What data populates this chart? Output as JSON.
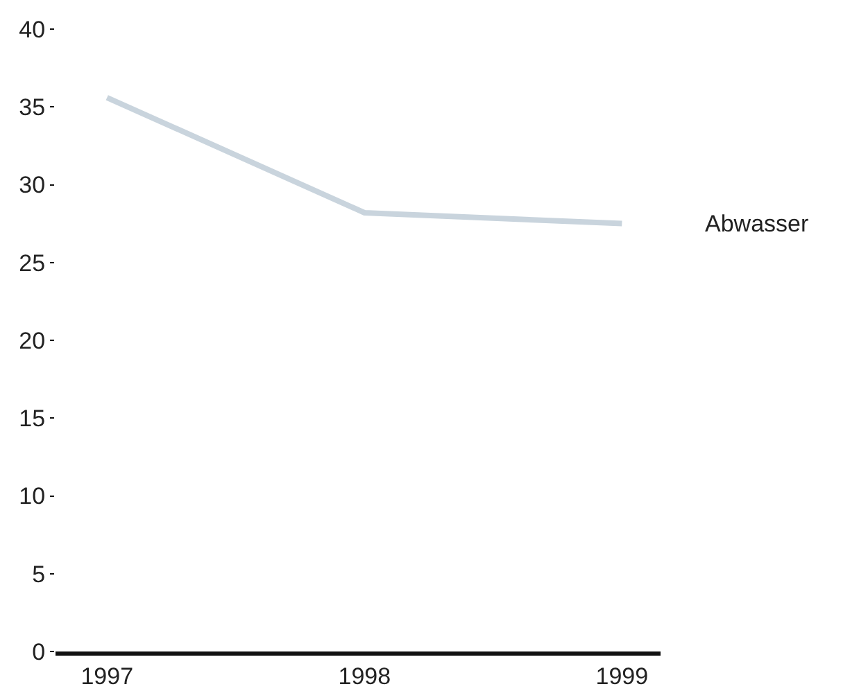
{
  "chart_data": {
    "type": "line",
    "categories": [
      "1997",
      "1998",
      "1999"
    ],
    "series": [
      {
        "name": "Abwasser",
        "color": "#c9d4dd",
        "values": [
          35.6,
          28.2,
          27.5
        ]
      }
    ],
    "ylim": [
      0,
      40
    ],
    "yticks": [
      0,
      5,
      10,
      15,
      20,
      25,
      30,
      35,
      40
    ],
    "grid": false,
    "legend": false,
    "marker": "none",
    "line_style": "solid"
  }
}
